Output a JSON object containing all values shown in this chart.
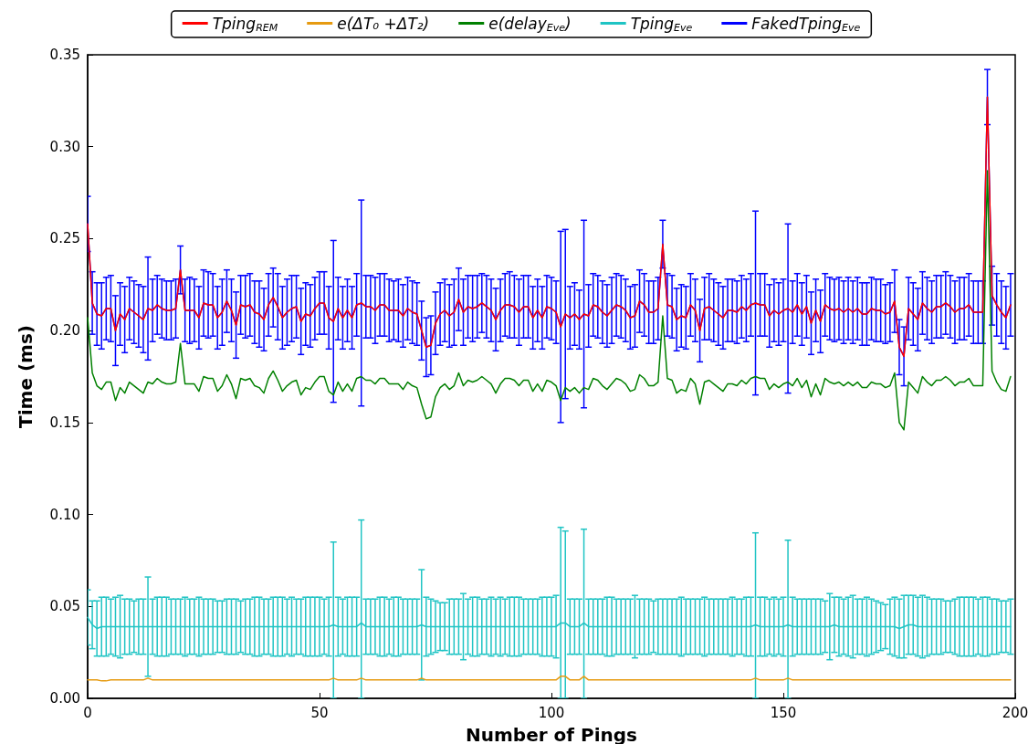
{
  "chart_data": {
    "type": "line",
    "xlabel": "Number of Pings",
    "ylabel": "Time (ms)",
    "xlim": [
      0,
      200
    ],
    "xticks": [
      0,
      50,
      100,
      150,
      200
    ],
    "ylim": [
      0,
      0.35
    ],
    "yticks": [
      {
        "value": 0,
        "label": "0.00"
      },
      {
        "value": 0.05,
        "label": "0.05"
      },
      {
        "value": 0.1,
        "label": "0.10"
      },
      {
        "value": 0.15,
        "label": "0.15"
      },
      {
        "value": 0.2,
        "label": "0.20"
      },
      {
        "value": 0.25,
        "label": "0.25"
      },
      {
        "value": 0.3,
        "label": "0.30"
      },
      {
        "value": 0.35,
        "label": "0.35"
      }
    ],
    "grid": false,
    "legend": "top",
    "marker": "none",
    "line_style": "solid",
    "x": [
      0,
      1,
      2,
      3,
      4,
      5,
      6,
      7,
      8,
      9,
      10,
      11,
      12,
      13,
      14,
      15,
      16,
      17,
      18,
      19,
      20,
      21,
      22,
      23,
      24,
      25,
      26,
      27,
      28,
      29,
      30,
      31,
      32,
      33,
      34,
      35,
      36,
      37,
      38,
      39,
      40,
      41,
      42,
      43,
      44,
      45,
      46,
      47,
      48,
      49,
      50,
      51,
      52,
      53,
      54,
      55,
      56,
      57,
      58,
      59,
      60,
      61,
      62,
      63,
      64,
      65,
      66,
      67,
      68,
      69,
      70,
      71,
      72,
      73,
      74,
      75,
      76,
      77,
      78,
      79,
      80,
      81,
      82,
      83,
      84,
      85,
      86,
      87,
      88,
      89,
      90,
      91,
      92,
      93,
      94,
      95,
      96,
      97,
      98,
      99,
      100,
      101,
      102,
      103,
      104,
      105,
      106,
      107,
      108,
      109,
      110,
      111,
      112,
      113,
      114,
      115,
      116,
      117,
      118,
      119,
      120,
      121,
      122,
      123,
      124,
      125,
      126,
      127,
      128,
      129,
      130,
      131,
      132,
      133,
      134,
      135,
      136,
      137,
      138,
      139,
      140,
      141,
      142,
      143,
      144,
      145,
      146,
      147,
      148,
      149,
      150,
      151,
      152,
      153,
      154,
      155,
      156,
      157,
      158,
      159,
      160,
      161,
      162,
      163,
      164,
      165,
      166,
      167,
      168,
      169,
      170,
      171,
      172,
      173,
      174,
      175,
      176,
      177,
      178,
      179,
      180,
      181,
      182,
      183,
      184,
      185,
      186,
      187,
      188,
      189,
      190,
      191,
      192,
      193,
      194,
      195,
      196,
      197,
      198,
      199
    ],
    "series": [
      {
        "name": "Tping$_{REM}$",
        "color": "#ff0000",
        "values": [
          0.258,
          0.215,
          0.209,
          0.208,
          0.212,
          0.212,
          0.2,
          0.209,
          0.206,
          0.212,
          0.21,
          0.208,
          0.206,
          0.212,
          0.211,
          0.214,
          0.212,
          0.211,
          0.211,
          0.212,
          0.233,
          0.211,
          0.211,
          0.211,
          0.207,
          0.215,
          0.214,
          0.214,
          0.207,
          0.21,
          0.216,
          0.211,
          0.203,
          0.214,
          0.213,
          0.214,
          0.21,
          0.209,
          0.206,
          0.214,
          0.218,
          0.213,
          0.207,
          0.21,
          0.212,
          0.213,
          0.205,
          0.209,
          0.208,
          0.212,
          0.215,
          0.215,
          0.207,
          0.205,
          0.212,
          0.207,
          0.211,
          0.207,
          0.214,
          0.215,
          0.213,
          0.213,
          0.211,
          0.214,
          0.214,
          0.211,
          0.211,
          0.211,
          0.208,
          0.212,
          0.21,
          0.209,
          0.2,
          0.191,
          0.192,
          0.204,
          0.209,
          0.211,
          0.208,
          0.21,
          0.217,
          0.21,
          0.213,
          0.212,
          0.213,
          0.215,
          0.213,
          0.211,
          0.206,
          0.211,
          0.214,
          0.214,
          0.213,
          0.21,
          0.213,
          0.213,
          0.207,
          0.211,
          0.207,
          0.213,
          0.212,
          0.21,
          0.202,
          0.209,
          0.207,
          0.209,
          0.206,
          0.209,
          0.208,
          0.214,
          0.213,
          0.21,
          0.208,
          0.211,
          0.214,
          0.213,
          0.211,
          0.207,
          0.208,
          0.216,
          0.214,
          0.21,
          0.21,
          0.212,
          0.247,
          0.214,
          0.213,
          0.206,
          0.208,
          0.207,
          0.214,
          0.211,
          0.2,
          0.212,
          0.213,
          0.211,
          0.209,
          0.207,
          0.211,
          0.211,
          0.21,
          0.213,
          0.211,
          0.214,
          0.215,
          0.214,
          0.214,
          0.208,
          0.211,
          0.209,
          0.211,
          0.212,
          0.21,
          0.214,
          0.209,
          0.213,
          0.204,
          0.211,
          0.205,
          0.214,
          0.212,
          0.211,
          0.212,
          0.21,
          0.212,
          0.21,
          0.212,
          0.209,
          0.209,
          0.212,
          0.211,
          0.211,
          0.209,
          0.21,
          0.216,
          0.191,
          0.186,
          0.212,
          0.209,
          0.206,
          0.215,
          0.212,
          0.21,
          0.213,
          0.213,
          0.215,
          0.213,
          0.21,
          0.212,
          0.212,
          0.214,
          0.21,
          0.21,
          0.21,
          0.327,
          0.219,
          0.214,
          0.21,
          0.207,
          0.214
        ]
      },
      {
        "name": "e(ΔT₀ +ΔT₂)",
        "color": "#e69a10",
        "values": [
          0.01,
          0.01,
          0.01,
          0.0095,
          0.0095,
          0.01,
          0.01,
          0.01,
          0.01,
          0.01,
          0.01,
          0.01,
          0.01,
          0.011,
          0.01,
          0.01,
          0.01,
          0.01,
          0.01,
          0.01,
          0.01,
          0.01,
          0.01,
          0.01,
          0.01,
          0.01,
          0.01,
          0.01,
          0.01,
          0.01,
          0.01,
          0.01,
          0.01,
          0.01,
          0.01,
          0.01,
          0.01,
          0.01,
          0.01,
          0.01,
          0.01,
          0.01,
          0.01,
          0.01,
          0.01,
          0.01,
          0.01,
          0.01,
          0.01,
          0.01,
          0.01,
          0.01,
          0.01,
          0.011,
          0.01,
          0.01,
          0.01,
          0.01,
          0.01,
          0.011,
          0.01,
          0.01,
          0.01,
          0.01,
          0.01,
          0.01,
          0.01,
          0.01,
          0.01,
          0.01,
          0.01,
          0.01,
          0.011,
          0.01,
          0.01,
          0.01,
          0.01,
          0.01,
          0.01,
          0.01,
          0.01,
          0.01,
          0.01,
          0.01,
          0.01,
          0.01,
          0.01,
          0.01,
          0.01,
          0.01,
          0.01,
          0.01,
          0.01,
          0.01,
          0.01,
          0.01,
          0.01,
          0.01,
          0.01,
          0.01,
          0.01,
          0.01,
          0.012,
          0.012,
          0.01,
          0.01,
          0.01,
          0.012,
          0.01,
          0.01,
          0.01,
          0.01,
          0.01,
          0.01,
          0.01,
          0.01,
          0.01,
          0.01,
          0.01,
          0.01,
          0.01,
          0.01,
          0.01,
          0.01,
          0.01,
          0.01,
          0.01,
          0.01,
          0.01,
          0.01,
          0.01,
          0.01,
          0.01,
          0.01,
          0.01,
          0.01,
          0.01,
          0.01,
          0.01,
          0.01,
          0.01,
          0.01,
          0.01,
          0.01,
          0.011,
          0.01,
          0.01,
          0.01,
          0.01,
          0.01,
          0.01,
          0.011,
          0.01,
          0.01,
          0.01,
          0.01,
          0.01,
          0.01,
          0.01,
          0.01,
          0.01,
          0.01,
          0.01,
          0.01,
          0.01,
          0.01,
          0.01,
          0.01,
          0.01,
          0.01,
          0.01,
          0.01,
          0.01,
          0.01,
          0.01,
          0.01,
          0.01,
          0.01,
          0.01,
          0.01,
          0.01,
          0.01,
          0.01,
          0.01,
          0.01,
          0.01,
          0.01,
          0.01,
          0.01,
          0.01,
          0.01,
          0.01,
          0.01,
          0.01,
          0.01,
          0.01,
          0.01,
          0.01,
          0.01,
          0.01
        ]
      },
      {
        "name": "e(delay$_{Eve}$)",
        "color": "#008000",
        "values": [
          0.207,
          0.177,
          0.17,
          0.168,
          0.172,
          0.172,
          0.162,
          0.169,
          0.166,
          0.172,
          0.17,
          0.168,
          0.166,
          0.172,
          0.171,
          0.174,
          0.172,
          0.171,
          0.171,
          0.172,
          0.193,
          0.171,
          0.171,
          0.171,
          0.167,
          0.175,
          0.174,
          0.174,
          0.167,
          0.17,
          0.176,
          0.171,
          0.163,
          0.174,
          0.173,
          0.174,
          0.17,
          0.169,
          0.166,
          0.174,
          0.178,
          0.173,
          0.167,
          0.17,
          0.172,
          0.173,
          0.165,
          0.169,
          0.168,
          0.172,
          0.175,
          0.175,
          0.167,
          0.165,
          0.172,
          0.167,
          0.171,
          0.167,
          0.174,
          0.175,
          0.173,
          0.173,
          0.171,
          0.174,
          0.174,
          0.171,
          0.171,
          0.171,
          0.168,
          0.172,
          0.17,
          0.169,
          0.16,
          0.152,
          0.153,
          0.164,
          0.169,
          0.171,
          0.168,
          0.17,
          0.177,
          0.17,
          0.173,
          0.172,
          0.173,
          0.175,
          0.173,
          0.171,
          0.166,
          0.171,
          0.174,
          0.174,
          0.173,
          0.17,
          0.173,
          0.173,
          0.167,
          0.171,
          0.167,
          0.173,
          0.172,
          0.17,
          0.162,
          0.169,
          0.167,
          0.169,
          0.166,
          0.169,
          0.168,
          0.174,
          0.173,
          0.17,
          0.168,
          0.171,
          0.174,
          0.173,
          0.171,
          0.167,
          0.168,
          0.176,
          0.174,
          0.17,
          0.17,
          0.172,
          0.208,
          0.174,
          0.173,
          0.166,
          0.168,
          0.167,
          0.174,
          0.171,
          0.16,
          0.172,
          0.173,
          0.171,
          0.169,
          0.167,
          0.171,
          0.171,
          0.17,
          0.173,
          0.171,
          0.174,
          0.175,
          0.174,
          0.174,
          0.168,
          0.171,
          0.169,
          0.171,
          0.172,
          0.17,
          0.174,
          0.169,
          0.173,
          0.164,
          0.171,
          0.165,
          0.174,
          0.172,
          0.171,
          0.172,
          0.17,
          0.172,
          0.17,
          0.172,
          0.169,
          0.169,
          0.172,
          0.171,
          0.171,
          0.169,
          0.17,
          0.177,
          0.15,
          0.146,
          0.172,
          0.169,
          0.166,
          0.175,
          0.172,
          0.17,
          0.173,
          0.173,
          0.175,
          0.173,
          0.17,
          0.172,
          0.172,
          0.174,
          0.17,
          0.17,
          0.17,
          0.287,
          0.178,
          0.172,
          0.168,
          0.167,
          0.175
        ]
      },
      {
        "name": "Tping$_{Eve}$",
        "color": "#1fc4c4",
        "values": [
          0.044,
          0.04,
          0.038,
          0.039,
          0.039,
          0.039,
          0.039,
          0.039,
          0.039,
          0.039,
          0.039,
          0.039,
          0.039,
          0.039,
          0.039,
          0.039,
          0.039,
          0.039,
          0.039,
          0.039,
          0.039,
          0.039,
          0.039,
          0.039,
          0.039,
          0.039,
          0.039,
          0.039,
          0.039,
          0.039,
          0.039,
          0.039,
          0.039,
          0.039,
          0.039,
          0.039,
          0.039,
          0.039,
          0.039,
          0.039,
          0.039,
          0.039,
          0.039,
          0.039,
          0.039,
          0.039,
          0.039,
          0.039,
          0.039,
          0.039,
          0.039,
          0.039,
          0.039,
          0.04,
          0.039,
          0.039,
          0.039,
          0.039,
          0.039,
          0.041,
          0.039,
          0.039,
          0.039,
          0.039,
          0.039,
          0.039,
          0.039,
          0.039,
          0.039,
          0.039,
          0.039,
          0.039,
          0.04,
          0.039,
          0.039,
          0.039,
          0.039,
          0.039,
          0.039,
          0.039,
          0.039,
          0.039,
          0.039,
          0.039,
          0.039,
          0.039,
          0.039,
          0.039,
          0.039,
          0.039,
          0.039,
          0.039,
          0.039,
          0.039,
          0.039,
          0.039,
          0.039,
          0.039,
          0.039,
          0.039,
          0.039,
          0.039,
          0.041,
          0.041,
          0.039,
          0.039,
          0.039,
          0.041,
          0.039,
          0.039,
          0.039,
          0.039,
          0.039,
          0.039,
          0.039,
          0.039,
          0.039,
          0.039,
          0.039,
          0.039,
          0.039,
          0.039,
          0.039,
          0.039,
          0.039,
          0.039,
          0.039,
          0.039,
          0.039,
          0.039,
          0.039,
          0.039,
          0.039,
          0.039,
          0.039,
          0.039,
          0.039,
          0.039,
          0.039,
          0.039,
          0.039,
          0.039,
          0.039,
          0.039,
          0.04,
          0.039,
          0.039,
          0.039,
          0.039,
          0.039,
          0.039,
          0.04,
          0.039,
          0.039,
          0.039,
          0.039,
          0.039,
          0.039,
          0.039,
          0.039,
          0.039,
          0.04,
          0.039,
          0.039,
          0.039,
          0.039,
          0.039,
          0.039,
          0.039,
          0.039,
          0.039,
          0.039,
          0.039,
          0.039,
          0.039,
          0.038,
          0.039,
          0.04,
          0.04,
          0.039,
          0.039,
          0.039,
          0.039,
          0.039,
          0.039,
          0.039,
          0.039,
          0.039,
          0.039,
          0.039,
          0.039,
          0.039,
          0.039,
          0.039,
          0.039,
          0.039,
          0.039,
          0.039,
          0.039,
          0.039
        ],
        "errors": [
          0.015,
          0.013,
          0.015,
          0.016,
          0.016,
          0.015,
          0.016,
          0.017,
          0.015,
          0.015,
          0.014,
          0.015,
          0.015,
          0.027,
          0.015,
          0.016,
          0.016,
          0.016,
          0.015,
          0.015,
          0.015,
          0.016,
          0.015,
          0.015,
          0.016,
          0.015,
          0.015,
          0.015,
          0.014,
          0.014,
          0.015,
          0.015,
          0.015,
          0.014,
          0.015,
          0.015,
          0.016,
          0.016,
          0.015,
          0.015,
          0.016,
          0.016,
          0.016,
          0.015,
          0.016,
          0.015,
          0.015,
          0.016,
          0.016,
          0.016,
          0.016,
          0.015,
          0.016,
          [
            0.0,
            0.085
          ],
          0.016,
          0.015,
          0.016,
          0.016,
          0.016,
          [
            0.0,
            0.097
          ],
          0.015,
          0.015,
          0.015,
          0.016,
          0.016,
          0.015,
          0.016,
          0.016,
          0.015,
          0.015,
          0.015,
          0.015,
          0.03,
          0.016,
          0.015,
          0.014,
          0.013,
          0.013,
          0.015,
          0.015,
          0.015,
          0.018,
          0.015,
          0.016,
          0.016,
          0.015,
          0.015,
          0.016,
          0.015,
          0.016,
          0.015,
          0.016,
          0.016,
          0.016,
          0.015,
          0.015,
          0.015,
          0.015,
          0.016,
          0.016,
          0.016,
          0.017,
          [
            0.0,
            0.093
          ],
          [
            0.0,
            0.091
          ],
          0.015,
          0.015,
          0.015,
          [
            0.0,
            0.092
          ],
          0.015,
          0.015,
          0.015,
          0.015,
          0.016,
          0.016,
          0.015,
          0.015,
          0.015,
          0.015,
          0.017,
          0.015,
          0.015,
          0.015,
          0.014,
          0.015,
          0.015,
          0.015,
          0.015,
          0.015,
          0.016,
          0.015,
          0.015,
          0.015,
          0.015,
          0.016,
          0.015,
          0.015,
          0.015,
          0.015,
          0.015,
          0.016,
          0.015,
          0.015,
          0.016,
          0.016,
          [
            0.0,
            0.09
          ],
          0.016,
          0.016,
          0.015,
          0.016,
          0.015,
          0.016,
          [
            0.0,
            0.086
          ],
          0.016,
          0.015,
          0.015,
          0.015,
          0.015,
          0.015,
          0.015,
          0.014,
          0.018,
          0.015,
          0.016,
          0.015,
          0.016,
          0.017,
          0.015,
          0.015,
          0.016,
          0.015,
          0.014,
          0.013,
          0.012,
          0.015,
          0.016,
          0.016,
          0.017,
          0.016,
          0.016,
          0.016,
          0.017,
          0.016,
          0.015,
          0.015,
          0.015,
          0.014,
          0.014,
          0.015,
          0.016,
          0.016,
          0.016,
          0.016,
          0.015,
          0.016,
          0.016,
          0.015,
          0.015,
          0.014,
          0.014,
          0.015
        ]
      },
      {
        "name": "FakedTping$_{Eve}$",
        "color": "#0000ff",
        "values": [
          0.258,
          0.215,
          0.209,
          0.208,
          0.212,
          0.212,
          0.2,
          0.209,
          0.206,
          0.212,
          0.21,
          0.208,
          0.206,
          0.212,
          0.211,
          0.214,
          0.212,
          0.211,
          0.211,
          0.212,
          0.233,
          0.211,
          0.211,
          0.211,
          0.207,
          0.215,
          0.214,
          0.214,
          0.207,
          0.21,
          0.216,
          0.211,
          0.203,
          0.214,
          0.213,
          0.214,
          0.21,
          0.209,
          0.206,
          0.214,
          0.218,
          0.213,
          0.207,
          0.21,
          0.212,
          0.213,
          0.205,
          0.209,
          0.208,
          0.212,
          0.215,
          0.215,
          0.207,
          0.205,
          0.212,
          0.207,
          0.211,
          0.207,
          0.214,
          0.215,
          0.213,
          0.213,
          0.211,
          0.214,
          0.214,
          0.211,
          0.211,
          0.211,
          0.208,
          0.212,
          0.21,
          0.209,
          0.2,
          0.191,
          0.192,
          0.204,
          0.209,
          0.211,
          0.208,
          0.21,
          0.217,
          0.21,
          0.213,
          0.212,
          0.213,
          0.215,
          0.213,
          0.211,
          0.206,
          0.211,
          0.214,
          0.214,
          0.213,
          0.21,
          0.213,
          0.213,
          0.207,
          0.211,
          0.207,
          0.213,
          0.212,
          0.21,
          0.202,
          0.209,
          0.207,
          0.209,
          0.206,
          0.209,
          0.208,
          0.214,
          0.213,
          0.21,
          0.208,
          0.211,
          0.214,
          0.213,
          0.211,
          0.207,
          0.208,
          0.216,
          0.214,
          0.21,
          0.21,
          0.212,
          0.247,
          0.214,
          0.213,
          0.206,
          0.208,
          0.207,
          0.214,
          0.211,
          0.2,
          0.212,
          0.213,
          0.211,
          0.209,
          0.207,
          0.211,
          0.211,
          0.21,
          0.213,
          0.211,
          0.214,
          0.215,
          0.214,
          0.214,
          0.208,
          0.211,
          0.209,
          0.211,
          0.212,
          0.21,
          0.214,
          0.209,
          0.213,
          0.204,
          0.211,
          0.205,
          0.214,
          0.212,
          0.211,
          0.212,
          0.21,
          0.212,
          0.21,
          0.212,
          0.209,
          0.209,
          0.212,
          0.211,
          0.211,
          0.209,
          0.21,
          0.216,
          0.191,
          0.186,
          0.212,
          0.209,
          0.206,
          0.215,
          0.212,
          0.21,
          0.213,
          0.213,
          0.215,
          0.213,
          0.21,
          0.212,
          0.212,
          0.214,
          0.21,
          0.21,
          0.21,
          0.327,
          0.219,
          0.214,
          0.21,
          0.207,
          0.214
        ],
        "errors": [
          0.015,
          0.017,
          0.017,
          0.018,
          0.017,
          0.018,
          0.019,
          0.017,
          0.018,
          0.017,
          0.017,
          0.017,
          0.018,
          0.028,
          0.017,
          0.016,
          0.016,
          0.016,
          0.016,
          0.016,
          0.013,
          0.017,
          0.018,
          0.017,
          0.017,
          0.018,
          0.018,
          0.017,
          0.017,
          0.018,
          0.017,
          0.017,
          0.018,
          0.016,
          0.017,
          0.017,
          0.017,
          0.018,
          0.017,
          0.017,
          0.016,
          0.018,
          0.017,
          0.018,
          0.018,
          0.017,
          0.018,
          0.017,
          0.017,
          0.017,
          0.017,
          0.017,
          0.017,
          0.044,
          0.017,
          0.017,
          0.017,
          0.017,
          0.017,
          0.056,
          0.017,
          0.017,
          0.018,
          0.017,
          0.017,
          0.017,
          0.016,
          0.017,
          0.017,
          0.017,
          0.017,
          0.017,
          0.016,
          0.016,
          0.016,
          0.017,
          0.017,
          0.017,
          0.017,
          0.018,
          0.017,
          0.018,
          0.017,
          0.018,
          0.017,
          0.016,
          0.017,
          0.017,
          0.017,
          0.017,
          0.017,
          0.018,
          0.017,
          0.018,
          0.017,
          0.017,
          0.017,
          0.017,
          0.017,
          0.017,
          0.017,
          0.017,
          0.052,
          0.046,
          0.017,
          0.017,
          0.016,
          0.051,
          0.017,
          0.017,
          0.017,
          0.017,
          0.017,
          0.018,
          0.017,
          0.017,
          0.017,
          0.017,
          0.017,
          0.017,
          0.017,
          0.017,
          0.017,
          0.017,
          0.013,
          0.017,
          0.017,
          0.017,
          0.017,
          0.017,
          0.017,
          0.017,
          0.017,
          0.017,
          0.018,
          0.017,
          0.017,
          0.017,
          0.017,
          0.017,
          0.017,
          0.017,
          0.017,
          0.017,
          0.05,
          0.017,
          0.017,
          0.017,
          0.017,
          0.017,
          0.017,
          0.046,
          0.017,
          0.017,
          0.017,
          0.017,
          0.017,
          0.017,
          0.017,
          0.017,
          0.017,
          0.017,
          0.017,
          0.017,
          0.017,
          0.017,
          0.017,
          0.017,
          0.017,
          0.017,
          0.017,
          0.017,
          0.016,
          0.016,
          0.017,
          0.015,
          0.016,
          0.017,
          0.017,
          0.017,
          0.017,
          0.017,
          0.017,
          0.017,
          0.017,
          0.017,
          0.017,
          0.017,
          0.017,
          0.017,
          0.017,
          0.017,
          0.017,
          0.017,
          0.015,
          0.016,
          0.017,
          0.017,
          0.017,
          0.017
        ]
      }
    ]
  }
}
